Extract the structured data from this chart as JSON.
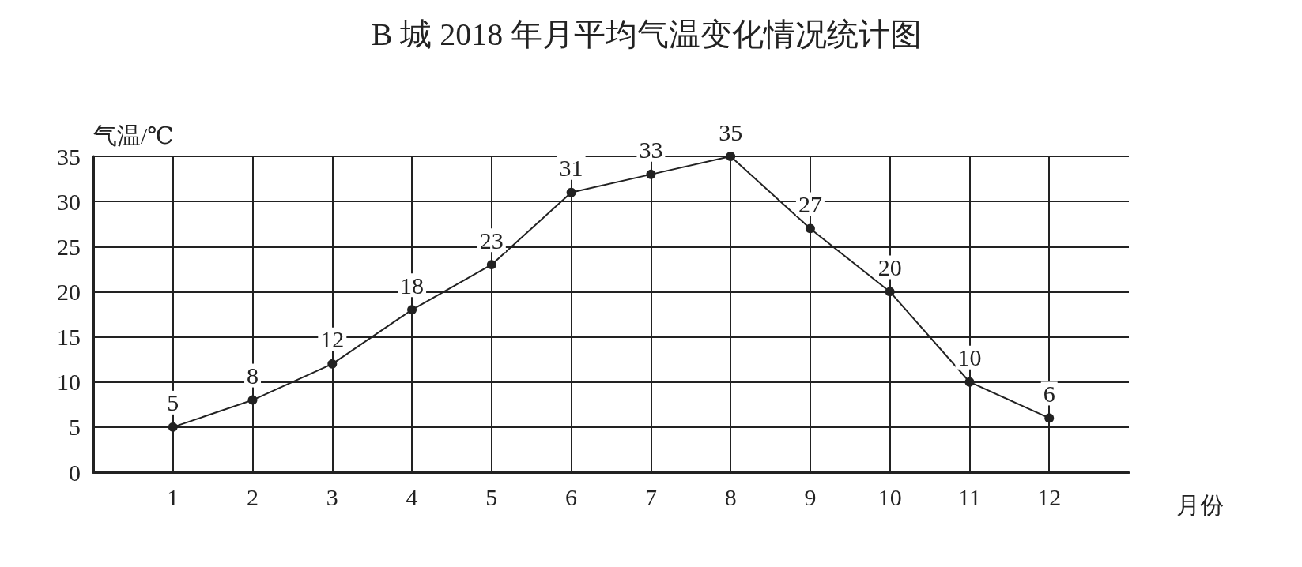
{
  "chart_data": {
    "type": "line",
    "title": "B 城 2018 年月平均气温变化情况统计图",
    "xlabel": "月份",
    "ylabel": "气温/℃",
    "x": [
      1,
      2,
      3,
      4,
      5,
      6,
      7,
      8,
      9,
      10,
      11,
      12
    ],
    "series": [
      {
        "color": "#222222",
        "values": [
          5,
          8,
          12,
          18,
          23,
          31,
          33,
          35,
          27,
          20,
          10,
          6
        ]
      }
    ],
    "xlim": [
      0,
      13
    ],
    "xticks": [
      1,
      2,
      3,
      4,
      5,
      6,
      7,
      8,
      9,
      10,
      11,
      12
    ],
    "ylim": [
      0,
      35
    ],
    "yticks": [
      0,
      5,
      10,
      15,
      20,
      25,
      30,
      35
    ],
    "grid": true,
    "marker": "circle",
    "line_style": "solid",
    "data_labels": true
  }
}
